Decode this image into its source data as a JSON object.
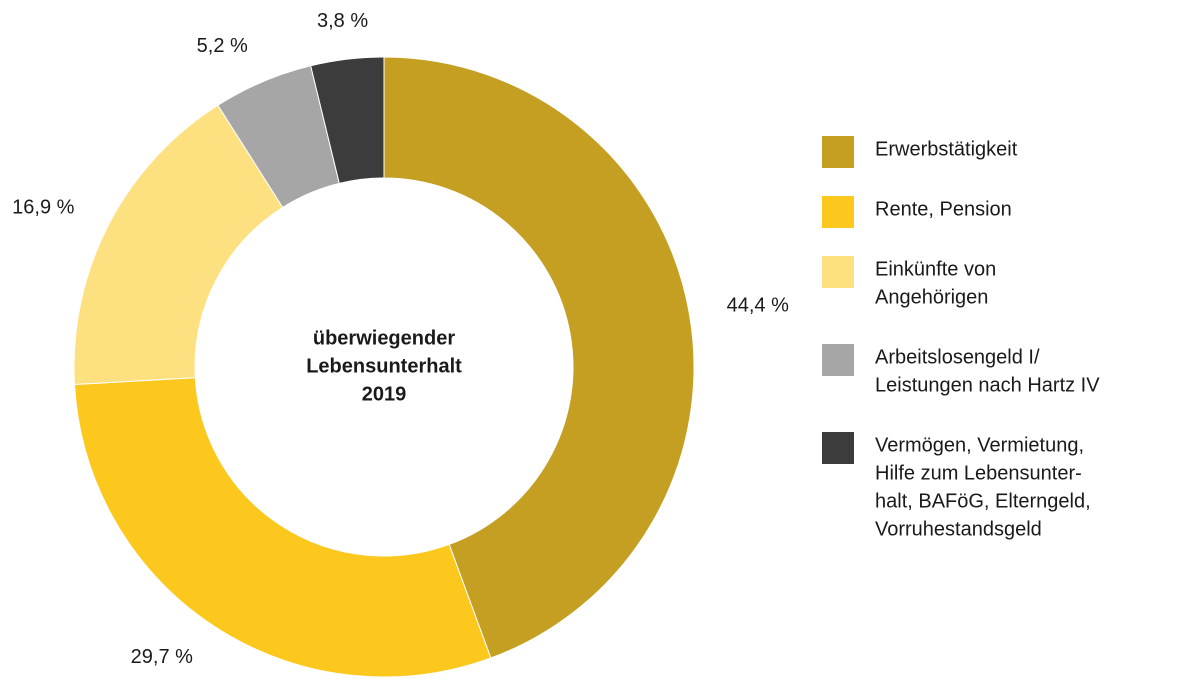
{
  "chart_data": {
    "type": "pie",
    "center_label": [
      "überwiegender",
      "Lebensunterhalt",
      "2019"
    ],
    "categories": [
      [
        "Erwerbstätigkeit"
      ],
      [
        "Rente, Pension"
      ],
      [
        "Einkünfte von",
        "Angehörigen"
      ],
      [
        "Arbeitslosengeld I/",
        "Leistungen nach Hartz IV"
      ],
      [
        "Vermögen, Vermietung,",
        "Hilfe zum Lebensunter-",
        "halt, BAFöG, Elterngeld,",
        "Vorruhestandsgeld"
      ]
    ],
    "values": [
      44.4,
      29.7,
      16.9,
      5.2,
      3.8
    ],
    "value_labels": [
      "44,4 %",
      "29,7 %",
      "16,9 %",
      "5,2 %",
      "3,8 %"
    ],
    "colors": [
      "#c49f22",
      "#fcc81e",
      "#fde07f",
      "#a6a6a6",
      "#3c3c3c"
    ]
  }
}
